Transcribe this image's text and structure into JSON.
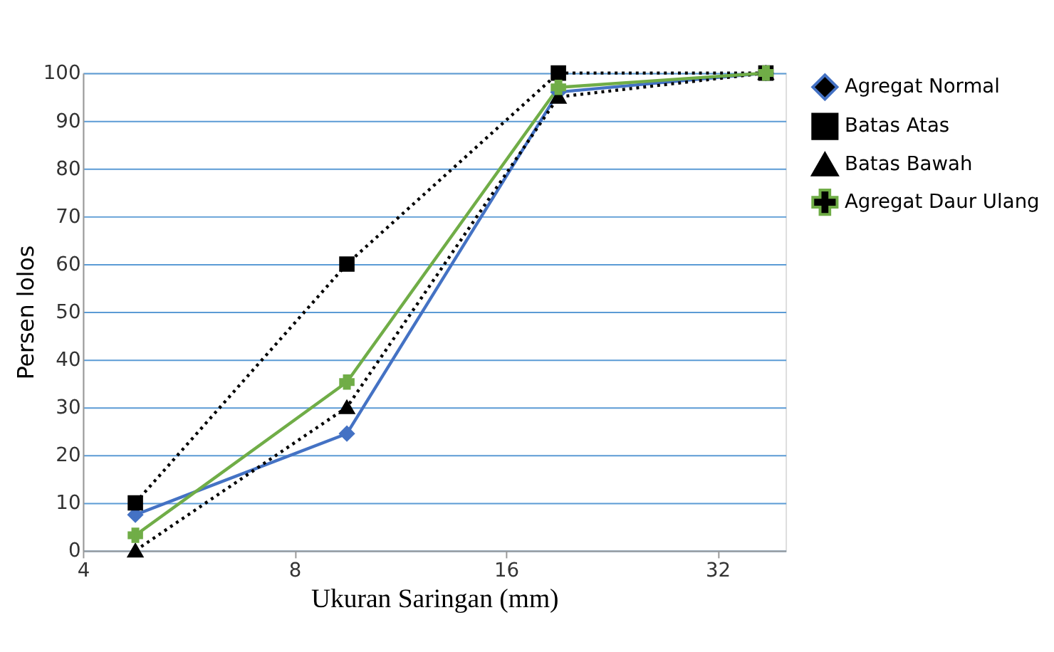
{
  "chart_data": {
    "type": "line",
    "xlabel": "Ukuran Saringan (mm)",
    "ylabel": "Persen lolos",
    "x": [
      4.75,
      9.5,
      19,
      37.5
    ],
    "xlim": [
      4,
      40
    ],
    "xticks": [
      4,
      8,
      16,
      32
    ],
    "log": "x",
    "ylim": [
      0,
      100
    ],
    "yticks": [
      0,
      10,
      20,
      30,
      40,
      50,
      60,
      70,
      80,
      90,
      100
    ],
    "grid": "y",
    "legend": "right",
    "series": [
      {
        "name": "Agregat Normal",
        "color": "#4472c4",
        "marker": "diamond",
        "line_style": "solid",
        "values": [
          7.5,
          24.5,
          96,
          100
        ]
      },
      {
        "name": "Batas Atas",
        "color": "#000000",
        "marker": "square",
        "line_style": "dotted",
        "values": [
          10,
          60,
          100,
          100
        ]
      },
      {
        "name": "Batas Bawah",
        "color": "#000000",
        "marker": "triangle",
        "line_style": "dotted",
        "values": [
          0,
          30,
          95,
          100
        ]
      },
      {
        "name": "Agregat Daur Ulang",
        "color": "#70ad47",
        "marker": "cross",
        "line_style": "solid",
        "values": [
          3.2,
          35.3,
          97,
          100
        ]
      }
    ]
  }
}
